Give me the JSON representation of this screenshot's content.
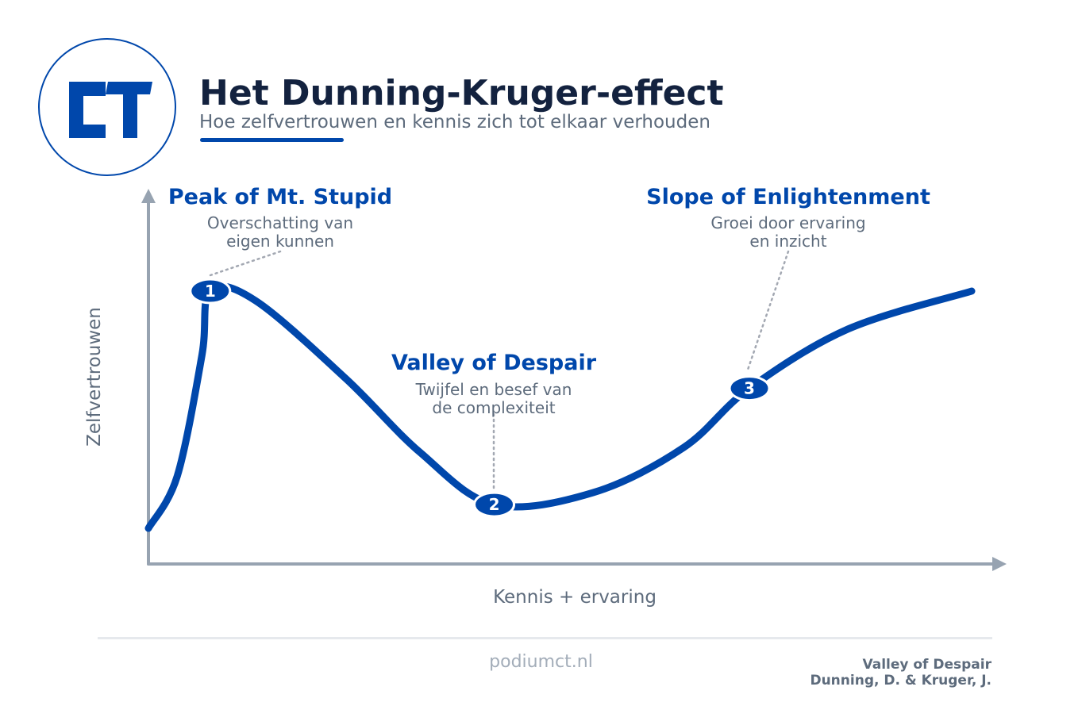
{
  "logo": {
    "text": "CT",
    "color": "#0047ab"
  },
  "header": {
    "title": "Het Dunning-Kruger-effect",
    "subtitle": "Hoe zelfvertrouwen en kennis zich tot elkaar verhouden"
  },
  "colors": {
    "accent": "#0047ab",
    "title": "#13223f",
    "muted_text": "#5d6b7c",
    "axis": "#97a3b1",
    "leader": "#a3a8b2"
  },
  "chart_data": {
    "type": "line",
    "xlabel": "Kennis + ervaring",
    "ylabel": "Zelfvertrouwen",
    "grid": false,
    "legend": "none",
    "curve_samples": [
      {
        "x": 0,
        "y": 0
      },
      {
        "x": 0.035,
        "y": 0.22
      },
      {
        "x": 0.065,
        "y": 0.73
      },
      {
        "x": 0.075,
        "y": 1
      },
      {
        "x": 0.13,
        "y": 0.96
      },
      {
        "x": 0.24,
        "y": 0.63
      },
      {
        "x": 0.33,
        "y": 0.32
      },
      {
        "x": 0.42,
        "y": 0.1
      },
      {
        "x": 0.54,
        "y": 0.15
      },
      {
        "x": 0.65,
        "y": 0.34
      },
      {
        "x": 0.73,
        "y": 0.59
      },
      {
        "x": 0.85,
        "y": 0.84
      },
      {
        "x": 1,
        "y": 1
      }
    ],
    "points": [
      {
        "number": "1",
        "x": 0.075,
        "y": 1,
        "title": "Peak of Mt. Stupid",
        "description": [
          "Overschatting van",
          "eigen kunnen"
        ]
      },
      {
        "number": "2",
        "x": 0.42,
        "y": 0.1,
        "title": "Valley of Despair",
        "description": [
          "Twijfel en besef van",
          "de complexiteit"
        ]
      },
      {
        "number": "3",
        "x": 0.73,
        "y": 0.59,
        "title": "Slope of Enlightenment",
        "description": [
          "Groei door ervaring",
          "en inzicht"
        ]
      }
    ]
  },
  "footer": {
    "website": "podiumct.nl",
    "credit_line1": "Valley of Despair",
    "credit_line2": "Dunning, D. & Kruger, J."
  }
}
